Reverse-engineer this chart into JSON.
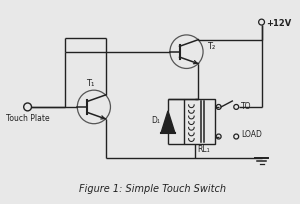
{
  "bg_color": "#e8e8e8",
  "line_color": "#555555",
  "dark_color": "#222222",
  "title": "Figure 1: Simple Touch Switch",
  "label_touch_plate": "Touch Plate",
  "label_T1": "T₁",
  "label_T2": "T₂",
  "label_D1": "D₁",
  "label_RL1": "RL₁",
  "label_12V": "+12V",
  "label_load": "TO\nLOAD"
}
